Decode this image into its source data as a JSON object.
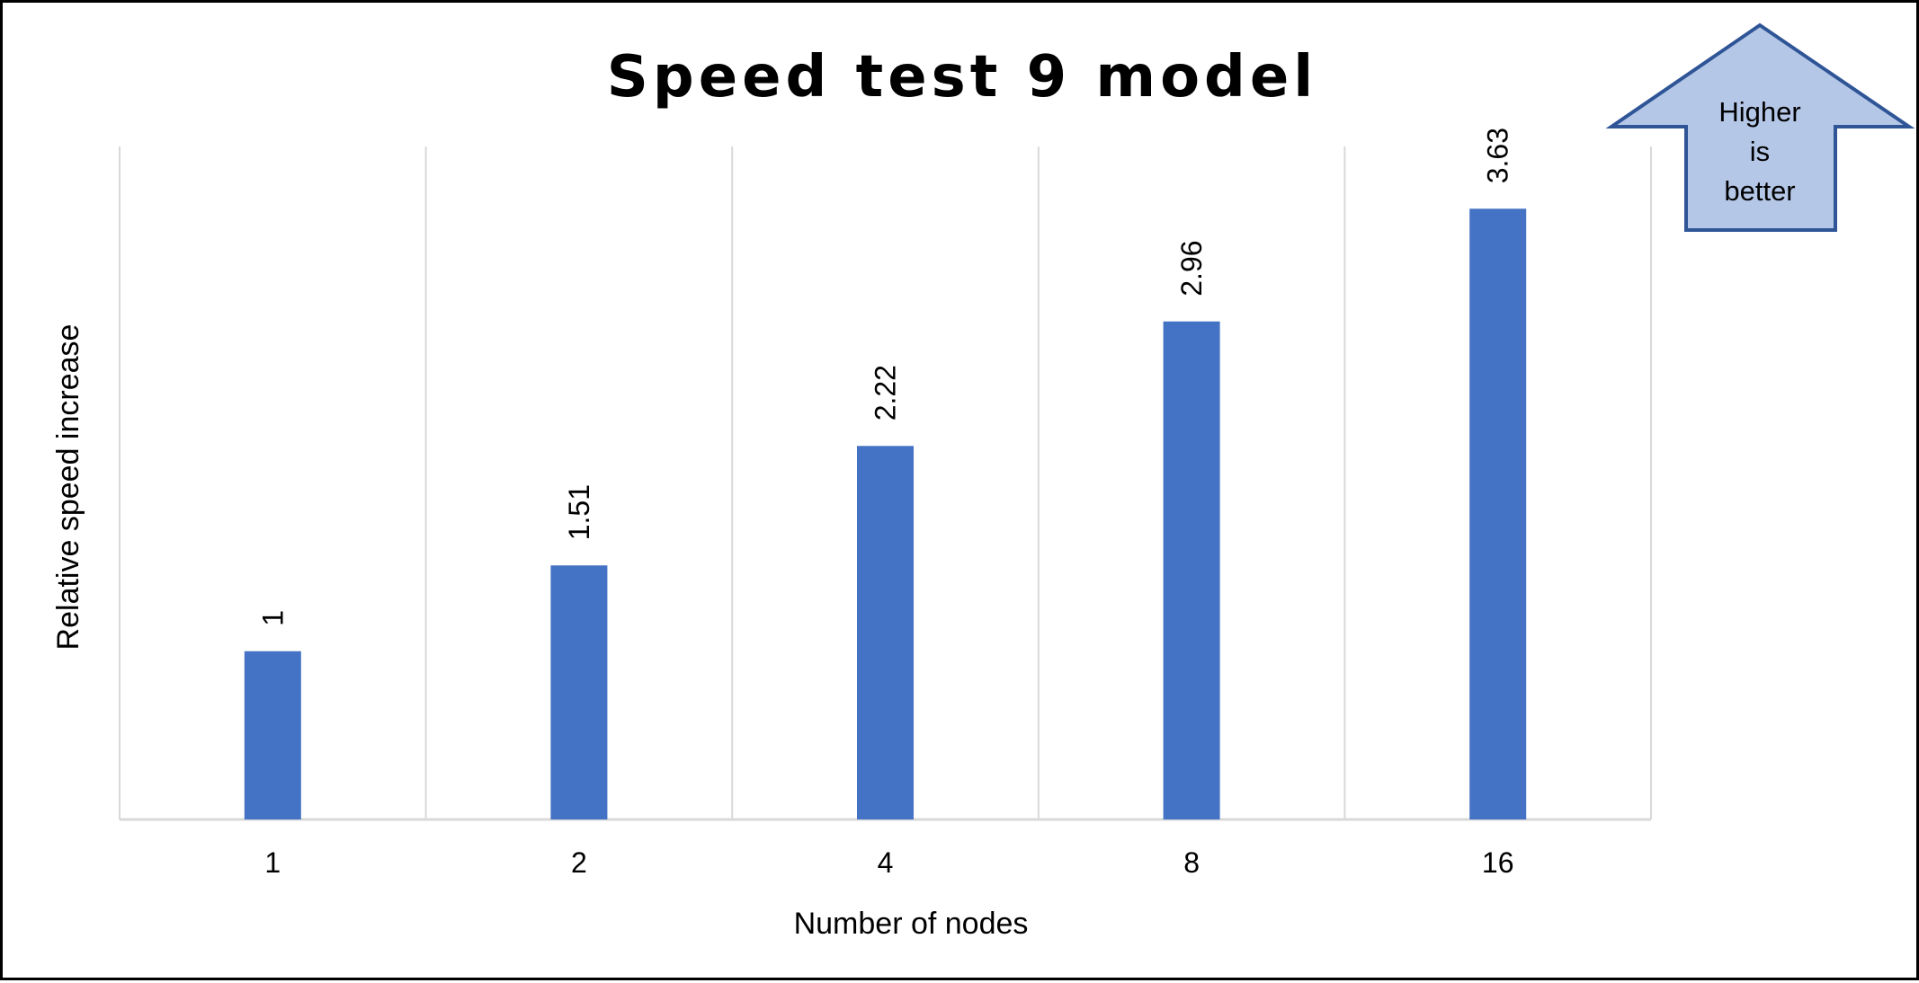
{
  "chart_data": {
    "type": "bar",
    "title": "Speed test 9 model",
    "xlabel": "Number of nodes",
    "ylabel": "Relative speed increase",
    "categories": [
      "1",
      "2",
      "4",
      "8",
      "16"
    ],
    "values": [
      1,
      1.51,
      2.22,
      2.96,
      3.63
    ],
    "data_labels": [
      "1",
      "1.51",
      "2.22",
      "2.96",
      "3.63"
    ],
    "ylim": [
      0,
      4
    ],
    "grid": "vertical",
    "legend": "none",
    "colors": {
      "bar": "#4472C4",
      "grid": "#D9D9D9",
      "callout_fill": "#B4C7E7",
      "callout_stroke": "#2F5597"
    }
  },
  "callout": {
    "icon": "up-arrow-icon",
    "lines": [
      "Higher",
      "is",
      "better"
    ]
  }
}
